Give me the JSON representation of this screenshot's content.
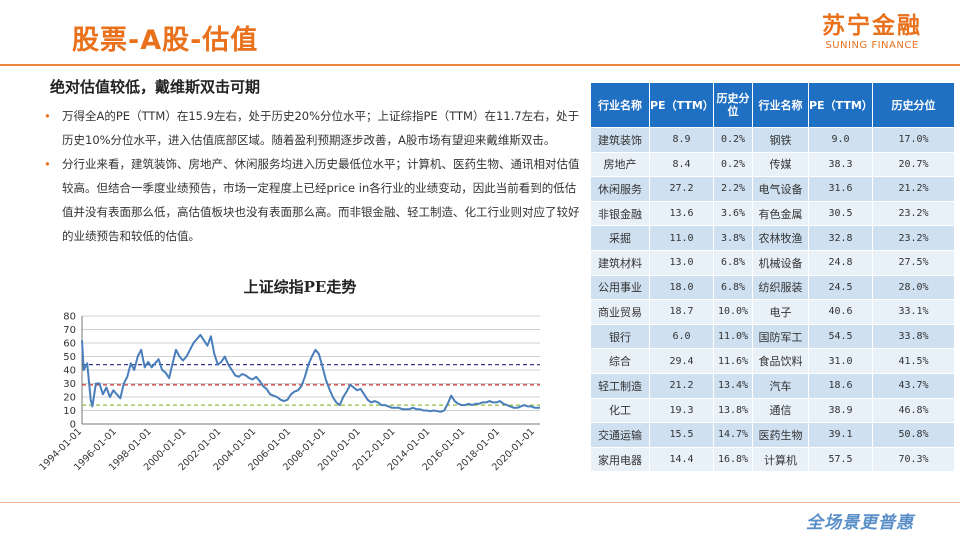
{
  "header": {
    "title": "股票-A股-估值"
  },
  "logo": {
    "cn": "苏宁金融",
    "en": "SUNING FINANCE"
  },
  "subtitle": "绝对估值较低，戴维斯双击可期",
  "bullets": [
    "万得全A的PE（TTM）在15.9左右，处于历史20%分位水平；上证综指PE（TTM）在11.7左右，处于历史10%分位水平，进入估值底部区域。随着盈利预期逐步改善，A股市场有望迎来戴维斯双击。",
    "分行业来看，建筑装饰、房地产、休闲服务均进入历史最低位水平；计算机、医药生物、通讯相对估值较高。但结合一季度业绩预告，市场一定程度上已经price  in各行业的业绩变动，因此当前看到的低估值并没有表面那么低，高估值板块也没有表面那么高。而非银金融、轻工制造、化工行业则对应了较好的业绩预告和较低的估值。"
  ],
  "table": {
    "headers": [
      "行业名称",
      "PE（TTM）",
      "历史分位",
      "行业名称",
      "PE（TTM）",
      "历史分位"
    ],
    "rows": [
      [
        "建筑装饰",
        "8.9",
        "0.2%",
        "钢铁",
        "9.0",
        "17.0%"
      ],
      [
        "房地产",
        "8.4",
        "0.2%",
        "传媒",
        "38.3",
        "20.7%"
      ],
      [
        "休闲服务",
        "27.2",
        "2.2%",
        "电气设备",
        "31.6",
        "21.2%"
      ],
      [
        "非银金融",
        "13.6",
        "3.6%",
        "有色金属",
        "30.5",
        "23.2%"
      ],
      [
        "采掘",
        "11.0",
        "3.8%",
        "农林牧渔",
        "32.8",
        "23.2%"
      ],
      [
        "建筑材料",
        "13.0",
        "6.8%",
        "机械设备",
        "24.8",
        "27.5%"
      ],
      [
        "公用事业",
        "18.0",
        "6.8%",
        "纺织服装",
        "24.5",
        "28.0%"
      ],
      [
        "商业贸易",
        "18.7",
        "10.0%",
        "电子",
        "40.6",
        "33.1%"
      ],
      [
        "银行",
        "6.0",
        "11.0%",
        "国防军工",
        "54.5",
        "33.8%"
      ],
      [
        "综合",
        "29.4",
        "11.6%",
        "食品饮料",
        "31.0",
        "41.5%"
      ],
      [
        "轻工制造",
        "21.2",
        "13.4%",
        "汽车",
        "18.6",
        "43.7%"
      ],
      [
        "化工",
        "19.3",
        "13.8%",
        "通信",
        "38.9",
        "46.8%"
      ],
      [
        "交通运输",
        "15.5",
        "14.7%",
        "医药生物",
        "39.1",
        "50.8%"
      ],
      [
        "家用电器",
        "14.4",
        "16.8%",
        "计算机",
        "57.5",
        "70.3%"
      ]
    ]
  },
  "chart_data": {
    "type": "line",
    "title": "上证综指PE走势",
    "ylim": [
      0,
      80
    ],
    "yticks": [
      0,
      10,
      20,
      30,
      40,
      50,
      60,
      70,
      80
    ],
    "xticks": [
      "1994-01-01",
      "1996-01-01",
      "1998-01-01",
      "2000-01-01",
      "2002-01-01",
      "2004-01-01",
      "2006-01-01",
      "2008-01-01",
      "2010-01-01",
      "2012-01-01",
      "2014-01-01",
      "2016-01-01",
      "2018-01-01",
      "2020-01-01"
    ],
    "xrange": [
      1994.0,
      2020.3
    ],
    "grid": true,
    "series": [
      {
        "color": "#4a7ebb",
        "x": [
          1994.0,
          1994.1,
          1994.3,
          1994.5,
          1994.6,
          1994.8,
          1995.0,
          1995.2,
          1995.4,
          1995.6,
          1995.8,
          1996.0,
          1996.2,
          1996.4,
          1996.6,
          1996.8,
          1997.0,
          1997.2,
          1997.4,
          1997.6,
          1997.8,
          1998.0,
          1998.2,
          1998.4,
          1998.6,
          1998.8,
          1999.0,
          1999.2,
          1999.4,
          1999.6,
          1999.8,
          2000.0,
          2000.2,
          2000.4,
          2000.6,
          2000.8,
          2001.0,
          2001.2,
          2001.4,
          2001.6,
          2001.8,
          2002.0,
          2002.2,
          2002.4,
          2002.6,
          2002.8,
          2003.0,
          2003.2,
          2003.4,
          2003.6,
          2003.8,
          2004.0,
          2004.2,
          2004.4,
          2004.6,
          2004.8,
          2005.0,
          2005.2,
          2005.4,
          2005.6,
          2005.8,
          2006.0,
          2006.2,
          2006.4,
          2006.6,
          2006.8,
          2007.0,
          2007.2,
          2007.4,
          2007.6,
          2007.8,
          2008.0,
          2008.2,
          2008.4,
          2008.6,
          2008.8,
          2009.0,
          2009.2,
          2009.4,
          2009.6,
          2009.8,
          2010.0,
          2010.2,
          2010.4,
          2010.6,
          2010.8,
          2011.0,
          2011.2,
          2011.4,
          2011.6,
          2011.8,
          2012.0,
          2012.2,
          2012.4,
          2012.6,
          2012.8,
          2013.0,
          2013.2,
          2013.4,
          2013.6,
          2013.8,
          2014.0,
          2014.2,
          2014.4,
          2014.6,
          2014.8,
          2015.0,
          2015.2,
          2015.4,
          2015.6,
          2015.8,
          2016.0,
          2016.2,
          2016.4,
          2016.6,
          2016.8,
          2017.0,
          2017.2,
          2017.4,
          2017.6,
          2017.8,
          2018.0,
          2018.2,
          2018.4,
          2018.6,
          2018.8,
          2019.0,
          2019.2,
          2019.4,
          2019.6,
          2019.8,
          2020.0,
          2020.2,
          2020.3
        ],
        "y": [
          62,
          40,
          45,
          18,
          13,
          30,
          30,
          22,
          27,
          20,
          25,
          22,
          19,
          30,
          35,
          45,
          40,
          50,
          55,
          42,
          46,
          42,
          45,
          48,
          40,
          38,
          34,
          45,
          55,
          50,
          47,
          50,
          55,
          60,
          63,
          66,
          62,
          58,
          65,
          52,
          44,
          46,
          50,
          44,
          40,
          36,
          35,
          37,
          36,
          34,
          33,
          35,
          32,
          28,
          26,
          22,
          21,
          20,
          18,
          17,
          18,
          22,
          24,
          25,
          28,
          35,
          44,
          50,
          55,
          52,
          43,
          33,
          26,
          20,
          16,
          14,
          20,
          24,
          29,
          27,
          25,
          26,
          22,
          18,
          16,
          17,
          16,
          14,
          14,
          13,
          12,
          12,
          12,
          11,
          11,
          11,
          12,
          11,
          11,
          10,
          10,
          9.5,
          10,
          9.5,
          9,
          10,
          15,
          21,
          17,
          15,
          14,
          14,
          15,
          14,
          15,
          15,
          16,
          16,
          17,
          16,
          16,
          17,
          15,
          14,
          13,
          12,
          12,
          13,
          14,
          13,
          13,
          12,
          12,
          12
        ]
      }
    ],
    "reference_lines": [
      {
        "y": 44,
        "color": "#3c3c8c"
      },
      {
        "y": 29,
        "color": "#c03030"
      },
      {
        "y": 14,
        "color": "#8fbf3f"
      }
    ]
  },
  "footer": {
    "slogan": "全场景更普惠"
  }
}
